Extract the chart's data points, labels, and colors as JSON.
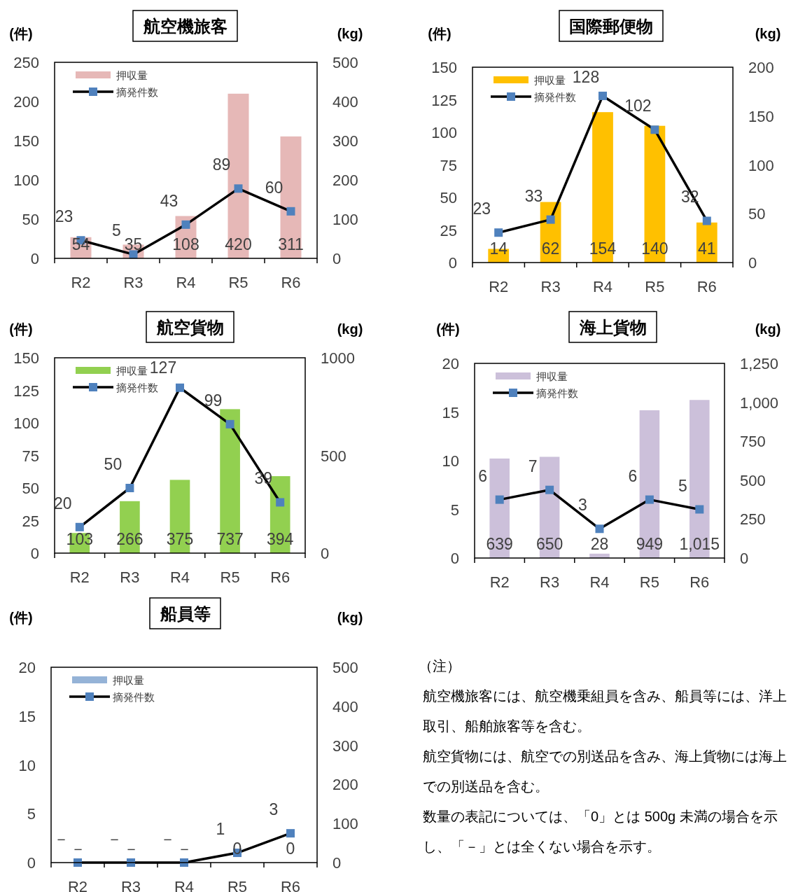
{
  "chart_data": [
    {
      "type": "bar",
      "title": "航空機旅客",
      "ylabel": "(件)",
      "y2label": "(kg)",
      "categories": [
        "R2",
        "R3",
        "R4",
        "R5",
        "R6"
      ],
      "ylim": [
        0,
        250
      ],
      "yticks": [
        0,
        50,
        100,
        150,
        200,
        250
      ],
      "y2lim": [
        0,
        500
      ],
      "y2ticks": [
        0,
        100,
        200,
        300,
        400,
        500
      ],
      "legend": "top left",
      "marker": "square",
      "data_labels": true,
      "series": [
        {
          "name": "押収量",
          "type": "bar",
          "axis": "y2",
          "color": "#e6b8b7",
          "values": [
            54,
            35,
            108,
            420,
            311
          ]
        },
        {
          "name": "摘発件数",
          "type": "line",
          "color": "#000000",
          "colors": [
            "#4f81bd",
            "#4f81bd",
            "#4f81bd",
            "#4f81bd",
            "#4f81bd"
          ],
          "values": [
            23,
            5,
            43,
            89,
            60
          ]
        }
      ]
    },
    {
      "type": "bar",
      "title": "国際郵便物",
      "ylabel": "(件)",
      "y2label": "(kg)",
      "categories": [
        "R2",
        "R3",
        "R4",
        "R5",
        "R6"
      ],
      "ylim": [
        0,
        150
      ],
      "yticks": [
        0,
        25,
        50,
        75,
        100,
        125,
        150
      ],
      "y2lim": [
        0,
        200
      ],
      "y2ticks": [
        0,
        50,
        100,
        150,
        200
      ],
      "legend": "top left",
      "marker": "square",
      "data_labels": true,
      "series": [
        {
          "name": "押収量",
          "type": "bar",
          "axis": "y2",
          "color": "#ffc000",
          "values": [
            14,
            62,
            154,
            140,
            41
          ]
        },
        {
          "name": "摘発件数",
          "type": "line",
          "color": "#000000",
          "colors": [
            "#4f81bd",
            "#4f81bd",
            "#4f81bd",
            "#4f81bd",
            "#4f81bd"
          ],
          "values": [
            23,
            33,
            128,
            102,
            32
          ]
        }
      ]
    },
    {
      "type": "bar",
      "title": "航空貨物",
      "ylabel": "(件)",
      "y2label": "(kg)",
      "categories": [
        "R2",
        "R3",
        "R4",
        "R5",
        "R6"
      ],
      "ylim": [
        0,
        150
      ],
      "yticks": [
        0,
        25,
        50,
        75,
        100,
        125,
        150
      ],
      "y2lim": [
        0,
        1000
      ],
      "y2ticks": [
        0,
        500,
        1000
      ],
      "legend": "top left",
      "marker": "square",
      "data_labels": true,
      "series": [
        {
          "name": "押収量",
          "type": "bar",
          "axis": "y2",
          "color": "#92d050",
          "values": [
            103,
            266,
            375,
            737,
            394
          ]
        },
        {
          "name": "摘発件数",
          "type": "line",
          "color": "#000000",
          "colors": [
            "#4f81bd",
            "#4f81bd",
            "#4f81bd",
            "#4f81bd",
            "#4f81bd"
          ],
          "values": [
            20,
            50,
            127,
            99,
            39
          ]
        }
      ]
    },
    {
      "type": "bar",
      "title": "海上貨物",
      "ylabel": "(件)",
      "y2label": "(kg)",
      "categories": [
        "R2",
        "R3",
        "R4",
        "R5",
        "R6"
      ],
      "ylim": [
        0,
        20
      ],
      "yticks": [
        0,
        5,
        10,
        15,
        20
      ],
      "y2lim": [
        0,
        1250
      ],
      "y2ticks": [
        0,
        250,
        500,
        750,
        {
          "value": 1000,
          "label": "1,000"
        },
        {
          "value": 1250,
          "label": "1,250"
        }
      ],
      "legend": "top left",
      "marker": "square",
      "data_labels": true,
      "series": [
        {
          "name": "押収量",
          "type": "bar",
          "axis": "y2",
          "color": "#ccc0da",
          "values": [
            639,
            650,
            28,
            949,
            1015
          ],
          "value_labels": [
            "639",
            "650",
            "28",
            "949",
            "1,015"
          ]
        },
        {
          "name": "摘発件数",
          "type": "line",
          "color": "#000000",
          "colors": [
            "#4f81bd",
            "#4f81bd",
            "#4f81bd",
            "#4f81bd",
            "#4f81bd"
          ],
          "values": [
            6,
            7,
            3,
            6,
            5
          ]
        }
      ]
    },
    {
      "type": "bar",
      "title": "船員等",
      "ylabel": "(件)",
      "y2label": "(kg)",
      "categories": [
        "R2",
        "R3",
        "R4",
        "R5",
        "R6"
      ],
      "ylim": [
        0,
        20
      ],
      "yticks": [
        0,
        5,
        10,
        15,
        20
      ],
      "y2lim": [
        0,
        500
      ],
      "y2ticks": [
        0,
        100,
        200,
        300,
        400,
        500
      ],
      "legend": "top left",
      "marker": "square",
      "series": [
        {
          "name": "押収量",
          "type": "bar",
          "axis": "y2",
          "color": "#95b3d7",
          "values": [
            0,
            0,
            0,
            0,
            0
          ],
          "value_labels": [
            "－",
            "－",
            "－",
            "0",
            "0"
          ]
        },
        {
          "name": "摘発件数",
          "type": "line",
          "color": "#000000",
          "colors": [
            "#4f81bd",
            "#4f81bd",
            "#4f81bd",
            "#4f81bd",
            "#4f81bd"
          ],
          "values": [
            0,
            0,
            0,
            1,
            3
          ],
          "value_labels": [
            "－",
            "－",
            "－",
            "1",
            "3"
          ]
        }
      ],
      "annotations": [
        "（注）",
        "航空機旅客には、航空機乗組員を含み、船員等には、洋上取引、船舶旅客等を含む。",
        "航空貨物には、航空での別送品を含み、海上貨物には海上での別送品を含む。",
        "数量の表記については、「0」とは 500g 未満の場合を示し、「－」とは全くない場合を示す。"
      ]
    }
  ]
}
